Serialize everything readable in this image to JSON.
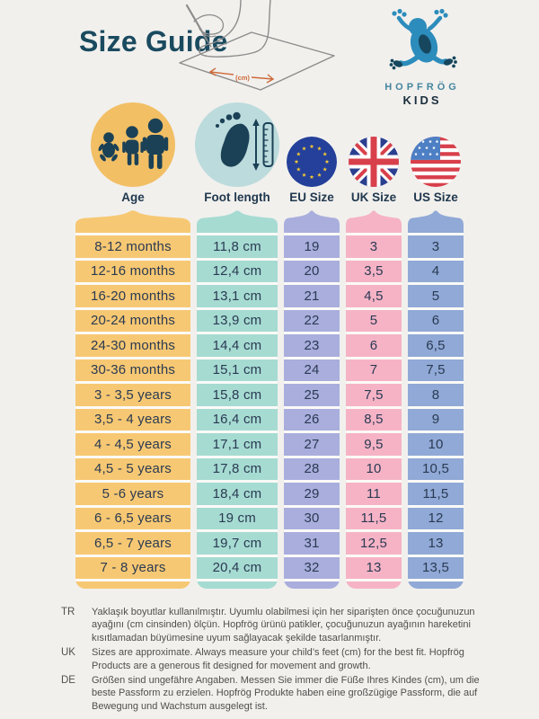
{
  "page": {
    "title": "Size Guide"
  },
  "brand": {
    "line1": "HOPFRÖG",
    "line2": "KIDS"
  },
  "illustration": {
    "cm_label": "(cm)"
  },
  "table": {
    "columns": [
      {
        "key": "age",
        "label": "Age",
        "band_color": "#F7C873",
        "circle_color": "#F2BF65",
        "icon": "children-icon"
      },
      {
        "key": "foot",
        "label": "Foot length",
        "band_color": "#A6DBD2",
        "circle_color": "#BCDBDD",
        "icon": "footprint-ruler-icon"
      },
      {
        "key": "eu",
        "label": "EU Size",
        "band_color": "#A9AEDD",
        "icon": "eu-flag-icon"
      },
      {
        "key": "uk",
        "label": "UK Size",
        "band_color": "#F6B3C6",
        "icon": "uk-flag-icon"
      },
      {
        "key": "us",
        "label": "US Size",
        "band_color": "#90A9D6",
        "icon": "us-flag-icon"
      }
    ]
  },
  "chart_data": {
    "type": "table",
    "title": "Size Guide",
    "columns": [
      "Age",
      "Foot length",
      "EU Size",
      "UK Size",
      "US Size"
    ],
    "rows": [
      [
        "8-12 months",
        "11,8 cm",
        "19",
        "3",
        "3"
      ],
      [
        "12-16 months",
        "12,4 cm",
        "20",
        "3,5",
        "4"
      ],
      [
        "16-20 months",
        "13,1 cm",
        "21",
        "4,5",
        "5"
      ],
      [
        "20-24 months",
        "13,9 cm",
        "22",
        "5",
        "6"
      ],
      [
        "24-30 months",
        "14,4 cm",
        "23",
        "6",
        "6,5"
      ],
      [
        "30-36 months",
        "15,1 cm",
        "24",
        "7",
        "7,5"
      ],
      [
        "3 - 3,5 years",
        "15,8 cm",
        "25",
        "7,5",
        "8"
      ],
      [
        "3,5 - 4 years",
        "16,4 cm",
        "26",
        "8,5",
        "9"
      ],
      [
        "4 - 4,5 years",
        "17,1 cm",
        "27",
        "9,5",
        "10"
      ],
      [
        "4,5 - 5 years",
        "17,8 cm",
        "28",
        "10",
        "10,5"
      ],
      [
        "5 -6 years",
        "18,4 cm",
        "29",
        "11",
        "11,5"
      ],
      [
        "6 - 6,5 years",
        "19 cm",
        "30",
        "11,5",
        "12"
      ],
      [
        "6,5 - 7 years",
        "19,7 cm",
        "31",
        "12,5",
        "13"
      ],
      [
        "7 - 8 years",
        "20,4 cm",
        "32",
        "13",
        "13,5"
      ]
    ]
  },
  "notes": [
    {
      "lang": "TR",
      "text": "Yaklaşık boyutlar kullanılmıştır. Uyumlu olabilmesi için her siparişten önce çocuğunuzun ayağını (cm cinsinden) ölçün. Hopfrög ürünü patikler, çocuğunuzun ayağının hareketini kısıtlamadan büyümesine uyum sağlayacak şekilde tasarlanmıştır."
    },
    {
      "lang": "UK",
      "text": "Sizes are approximate. Always measure your child’s feet (cm) for the best fit. Hopfrög Products are a generous fit designed for movement and growth."
    },
    {
      "lang": "DE",
      "text": "Größen sind ungefähre Angaben. Messen Sie immer die Füße Ihres Kindes (cm), um die beste Passform zu erzielen. Hopfrög Produkte haben eine großzügige Passform, die auf Bewegung und Wachstum ausgelegt ist."
    }
  ]
}
